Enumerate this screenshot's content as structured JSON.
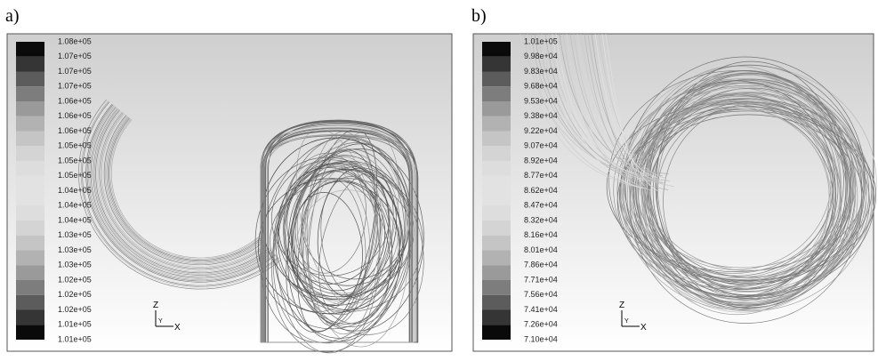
{
  "panels": [
    {
      "label": "a)",
      "colorbar": [
        "1.08e+05",
        "1.07e+05",
        "1.07e+05",
        "1.07e+05",
        "1.06e+05",
        "1.06e+05",
        "1.06e+05",
        "1.05e+05",
        "1.05e+05",
        "1.05e+05",
        "1.04e+05",
        "1.04e+05",
        "1.04e+05",
        "1.03e+05",
        "1.03e+05",
        "1.03e+05",
        "1.02e+05",
        "1.02e+05",
        "1.02e+05",
        "1.01e+05",
        "1.01e+05"
      ],
      "axes": {
        "z": "Z",
        "y": "Y",
        "x": "X"
      }
    },
    {
      "label": "b)",
      "colorbar": [
        "1.01e+05",
        "9.98e+04",
        "9.83e+04",
        "9.68e+04",
        "9.53e+04",
        "9.38e+04",
        "9.22e+04",
        "9.07e+04",
        "8.92e+04",
        "8.77e+04",
        "8.62e+04",
        "8.47e+04",
        "8.32e+04",
        "8.16e+04",
        "8.01e+04",
        "7.86e+04",
        "7.71e+04",
        "7.56e+04",
        "7.41e+04",
        "7.26e+04",
        "7.10e+04"
      ],
      "axes": {
        "z": "Z",
        "y": "Y",
        "x": "X"
      }
    }
  ]
}
